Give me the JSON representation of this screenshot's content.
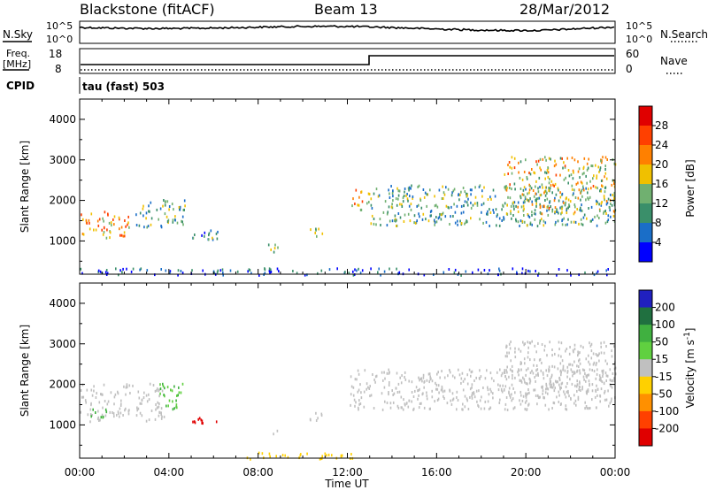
{
  "header": {
    "station": "Blackstone (fitACF)",
    "beam": "Beam 13",
    "date": "28/Mar/2012"
  },
  "panels": {
    "nsky": {
      "label": "N.Sky",
      "left_ticks": [
        "10^5",
        "10^0"
      ],
      "right_ticks": [
        "10^5",
        "10^0"
      ],
      "right_label": "N.Search"
    },
    "freq": {
      "label_1": "Freq.",
      "label_2": "[MHz]",
      "left_ticks": [
        "18",
        "8"
      ],
      "right_ticks": [
        "60",
        "0"
      ],
      "right_label": "Nave"
    },
    "cpid": {
      "label": "CPID",
      "program": "tau (fast) 503"
    }
  },
  "colors": {
    "power": [
      "#0000ff",
      "#1a6ec8",
      "#3a8f6a",
      "#70b070",
      "#f0c000",
      "#ff8000",
      "#ff4000",
      "#e00000"
    ],
    "velocity": [
      "#2020c0",
      "#207040",
      "#40b040",
      "#60d040",
      "#c0c0c0",
      "#ffd000",
      "#ff9000",
      "#ff4000",
      "#e00000"
    ]
  },
  "chart_data": [
    {
      "type": "heatmap",
      "ylabel": "Slant Range [km]",
      "y_ticks": [
        "4000",
        "3000",
        "2000",
        "1000"
      ],
      "ylim": [
        180,
        4500
      ],
      "colorbar_label": "Power [dB]",
      "colorbar_ticks": [
        "28",
        "24",
        "20",
        "16",
        "12",
        "8",
        "4"
      ],
      "colorbar_range": [
        0,
        30
      ],
      "regions": [
        {
          "t0": 0.0,
          "t1": 2.2,
          "r0": 1100,
          "r1": 1750,
          "level": 0.65
        },
        {
          "t0": 2.5,
          "t1": 4.7,
          "r0": 1350,
          "r1": 2050,
          "level": 0.35
        },
        {
          "t0": 5.0,
          "t1": 6.2,
          "r0": 1050,
          "r1": 1300,
          "level": 0.3
        },
        {
          "t0": 8.4,
          "t1": 9.0,
          "r0": 750,
          "r1": 950,
          "level": 0.5
        },
        {
          "t0": 10.3,
          "t1": 11.0,
          "r0": 1100,
          "r1": 1350,
          "level": 0.45
        },
        {
          "t0": 12.1,
          "t1": 13.0,
          "r0": 1750,
          "r1": 2300,
          "level": 0.6
        },
        {
          "t0": 13.0,
          "t1": 24.0,
          "r0": 1400,
          "r1": 2400,
          "level": 0.35
        },
        {
          "t0": 19.0,
          "t1": 24.0,
          "r0": 1700,
          "r1": 3100,
          "level": 0.55
        },
        {
          "t0": 0.0,
          "t1": 24.0,
          "r0": 180,
          "r1": 350,
          "level": 0.15
        }
      ]
    },
    {
      "type": "heatmap",
      "xlabel": "Time UT",
      "x_ticks": [
        "00:00",
        "04:00",
        "08:00",
        "12:00",
        "16:00",
        "20:00",
        "00:00"
      ],
      "xlim": [
        0,
        24
      ],
      "ylabel": "Slant Range [km]",
      "y_ticks": [
        "4000",
        "3000",
        "2000",
        "1000"
      ],
      "ylim": [
        180,
        4500
      ],
      "colorbar_label": "Velocity [m s-1]",
      "colorbar_label_main": "Velocity [m s",
      "colorbar_label_sup": "-1",
      "colorbar_label_end": "]",
      "colorbar_ticks": [
        "200",
        "100",
        "50",
        "15",
        "-15",
        "-50",
        "-100",
        "-200"
      ],
      "colorbar_range": [
        -250,
        250
      ],
      "regions": [
        {
          "t0": 0.0,
          "t1": 3.8,
          "r0": 1100,
          "r1": 2050,
          "v": 0
        },
        {
          "t0": 0.3,
          "t1": 1.2,
          "r0": 1200,
          "r1": 1500,
          "v": 30
        },
        {
          "t0": 3.5,
          "t1": 4.6,
          "r0": 1400,
          "r1": 2050,
          "v": 30
        },
        {
          "t0": 5.0,
          "t1": 6.2,
          "r0": 1050,
          "r1": 1300,
          "v": -220
        },
        {
          "t0": 8.4,
          "t1": 9.0,
          "r0": 750,
          "r1": 950,
          "v": 0
        },
        {
          "t0": 10.3,
          "t1": 11.0,
          "r0": 1100,
          "r1": 1350,
          "v": 0
        },
        {
          "t0": 12.1,
          "t1": 24.0,
          "r0": 1400,
          "r1": 2400,
          "v": 0
        },
        {
          "t0": 19.0,
          "t1": 24.0,
          "r0": 1700,
          "r1": 3100,
          "v": 0
        },
        {
          "t0": 7.0,
          "t1": 12.5,
          "r0": 180,
          "r1": 350,
          "v": -30
        }
      ]
    }
  ]
}
